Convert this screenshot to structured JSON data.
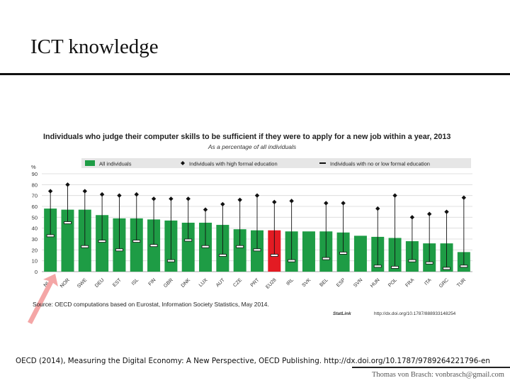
{
  "slide": {
    "title": "ICT knowledge",
    "citation": "OECD (2014), Measuring the Digital Economy: A New Perspective, OECD Publishing. http://dx.doi.org/10.1787/9789264221796-en",
    "author": "Thomas von Brasch: vonbrasch@gmail.com"
  },
  "colors": {
    "bar": "#1e9c45",
    "highlight_bar": "#e31b23",
    "legend_bg": "#e6e6e6",
    "arrow": "#f4a6a6"
  },
  "chart_data": {
    "type": "bar",
    "title": "Individuals who judge their computer skills to be sufficient if they were to apply for a new job within a year, 2013",
    "subtitle": "As a percentage of all individuals",
    "ylabel": "%",
    "ylim": [
      0,
      90
    ],
    "yticks": [
      0,
      10,
      20,
      30,
      40,
      50,
      60,
      70,
      80,
      90
    ],
    "highlight_category": "EU28",
    "categories": [
      "NLD",
      "NOR",
      "SWE",
      "DEU",
      "EST",
      "ISL",
      "FIN",
      "GBR",
      "DNK",
      "LUX",
      "AUT",
      "CZE",
      "PRT",
      "EU28",
      "IRL",
      "SVK",
      "BEL",
      "ESP",
      "SVN",
      "HUN",
      "POL",
      "FRA",
      "ITA",
      "GRC",
      "TUR"
    ],
    "series": [
      {
        "name": "All individuals",
        "marker": "bar",
        "values": [
          58,
          57,
          57,
          52,
          49,
          49,
          48,
          47,
          45,
          45,
          43,
          39,
          38,
          38,
          37,
          37,
          37,
          36,
          33,
          32,
          31,
          28,
          26,
          26,
          18
        ]
      },
      {
        "name": "Individuals with high formal education",
        "marker": "diamond",
        "values": [
          74,
          80,
          74,
          71,
          70,
          71,
          67,
          67,
          67,
          57,
          62,
          66,
          70,
          64,
          65,
          null,
          63,
          63,
          null,
          58,
          70,
          50,
          53,
          55,
          68
        ]
      },
      {
        "name": "Individuals with no or low formal education",
        "marker": "dash",
        "values": [
          33,
          45,
          23,
          28,
          20,
          28,
          24,
          10,
          29,
          23,
          15,
          23,
          20,
          15,
          10,
          null,
          12,
          17,
          null,
          5,
          4,
          10,
          8,
          3,
          5
        ]
      }
    ],
    "source": "Source: OECD computations based on Eurostat, Information Society Statistics, May 2014.",
    "statlink": "StatLink",
    "statlink_url": "http://dx.doi.org/10.1787/888933148254"
  }
}
